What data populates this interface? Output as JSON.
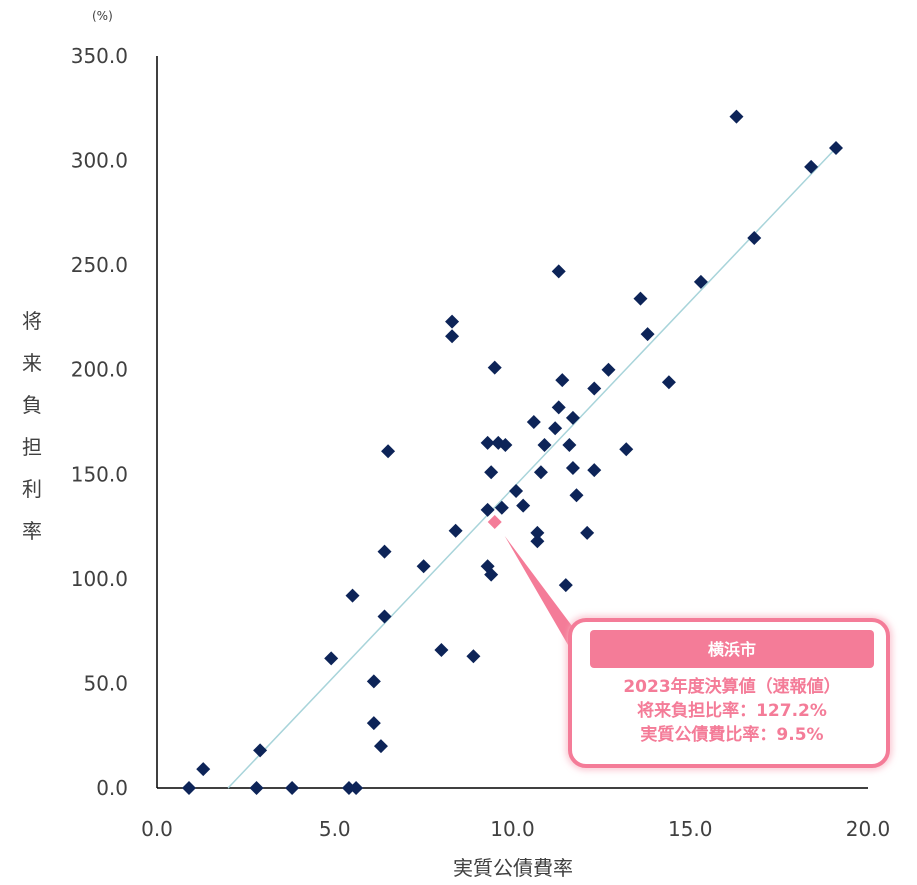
{
  "chart_data": {
    "type": "scatter",
    "ylabel_unit": "(%)",
    "xlabel": "実質公債費率",
    "ylabel": "将来負担利率",
    "xlim": [
      0.0,
      20.0
    ],
    "ylim": [
      0.0,
      350.0
    ],
    "xticks": [
      "0.0",
      "5.0",
      "10.0",
      "15.0",
      "20.0"
    ],
    "yticks": [
      "0.0",
      "50.0",
      "100.0",
      "150.0",
      "200.0",
      "250.0",
      "300.0",
      "350.0"
    ],
    "series": [
      {
        "color": "#0d2458",
        "marker": "diamond",
        "points": [
          {
            "x": 0.9,
            "y": 0
          },
          {
            "x": 1.3,
            "y": 9
          },
          {
            "x": 2.8,
            "y": 0
          },
          {
            "x": 2.9,
            "y": 18
          },
          {
            "x": 3.8,
            "y": 0
          },
          {
            "x": 4.9,
            "y": 62
          },
          {
            "x": 5.4,
            "y": 0
          },
          {
            "x": 5.5,
            "y": 92
          },
          {
            "x": 5.6,
            "y": 0
          },
          {
            "x": 6.1,
            "y": 51
          },
          {
            "x": 6.1,
            "y": 31
          },
          {
            "x": 6.3,
            "y": 20
          },
          {
            "x": 6.4,
            "y": 113
          },
          {
            "x": 6.4,
            "y": 82
          },
          {
            "x": 6.5,
            "y": 161
          },
          {
            "x": 7.5,
            "y": 106
          },
          {
            "x": 8.0,
            "y": 66
          },
          {
            "x": 8.3,
            "y": 223
          },
          {
            "x": 8.3,
            "y": 216
          },
          {
            "x": 8.4,
            "y": 123
          },
          {
            "x": 8.9,
            "y": 63
          },
          {
            "x": 9.3,
            "y": 165
          },
          {
            "x": 9.3,
            "y": 133
          },
          {
            "x": 9.3,
            "y": 106
          },
          {
            "x": 9.4,
            "y": 151
          },
          {
            "x": 9.4,
            "y": 102
          },
          {
            "x": 9.5,
            "y": 201
          },
          {
            "x": 9.6,
            "y": 165
          },
          {
            "x": 9.7,
            "y": 134
          },
          {
            "x": 9.8,
            "y": 164
          },
          {
            "x": 10.1,
            "y": 142
          },
          {
            "x": 10.3,
            "y": 135
          },
          {
            "x": 10.6,
            "y": 175
          },
          {
            "x": 10.7,
            "y": 122
          },
          {
            "x": 10.7,
            "y": 118
          },
          {
            "x": 10.8,
            "y": 151
          },
          {
            "x": 10.9,
            "y": 164
          },
          {
            "x": 11.2,
            "y": 172
          },
          {
            "x": 11.3,
            "y": 247
          },
          {
            "x": 11.3,
            "y": 182
          },
          {
            "x": 11.4,
            "y": 195
          },
          {
            "x": 11.5,
            "y": 97
          },
          {
            "x": 11.6,
            "y": 164
          },
          {
            "x": 11.7,
            "y": 177
          },
          {
            "x": 11.7,
            "y": 153
          },
          {
            "x": 11.8,
            "y": 140
          },
          {
            "x": 12.1,
            "y": 122
          },
          {
            "x": 12.3,
            "y": 191
          },
          {
            "x": 12.3,
            "y": 152
          },
          {
            "x": 12.7,
            "y": 200
          },
          {
            "x": 13.2,
            "y": 162
          },
          {
            "x": 13.6,
            "y": 234
          },
          {
            "x": 13.8,
            "y": 217
          },
          {
            "x": 14.4,
            "y": 194
          },
          {
            "x": 15.3,
            "y": 242
          },
          {
            "x": 16.3,
            "y": 321
          },
          {
            "x": 16.8,
            "y": 263
          },
          {
            "x": 18.4,
            "y": 297
          },
          {
            "x": 19.1,
            "y": 306
          }
        ]
      }
    ],
    "highlight": {
      "x": 9.5,
      "y": 127.2,
      "color": "#f47c98"
    },
    "trendline": {
      "color": "#a8d4da",
      "from": [
        2.0,
        0.0
      ],
      "to": [
        19.1,
        306.0
      ]
    },
    "grid": false
  },
  "callout": {
    "title": "横浜市",
    "lines": [
      "2023年度決算値（速報値）",
      "将来負担比率：127.2%",
      "実質公債費比率：9.5%"
    ],
    "accent": "#f47c98"
  }
}
